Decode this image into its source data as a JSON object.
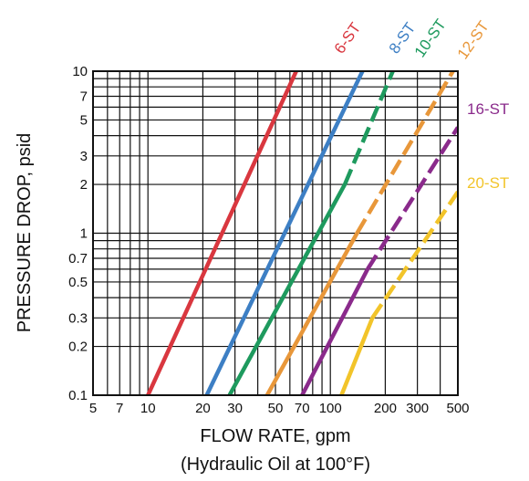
{
  "chart_data": {
    "type": "line",
    "xscale": "log",
    "yscale": "log",
    "xlim": [
      5,
      500
    ],
    "ylim": [
      0.1,
      10
    ],
    "grid": true,
    "xlabel": "FLOW RATE, gpm",
    "xlabel_sub": "(Hydraulic Oil at 100°F)",
    "ylabel": "PRESSURE DROP, psid",
    "x_ticks": [
      {
        "value": 5,
        "label": "5"
      },
      {
        "value": 7,
        "label": "7"
      },
      {
        "value": 10,
        "label": "10"
      },
      {
        "value": 20,
        "label": "20"
      },
      {
        "value": 30,
        "label": "30"
      },
      {
        "value": 50,
        "label": "50"
      },
      {
        "value": 70,
        "label": "70"
      },
      {
        "value": 100,
        "label": "100"
      },
      {
        "value": 200,
        "label": "200"
      },
      {
        "value": 300,
        "label": "300"
      },
      {
        "value": 500,
        "label": "500"
      }
    ],
    "y_ticks": [
      {
        "value": 0.1,
        "label": "0.1"
      },
      {
        "value": 0.2,
        "label": "0.2"
      },
      {
        "value": 0.3,
        "label": "0.3"
      },
      {
        "value": 0.5,
        "label": "0.5"
      },
      {
        "value": 0.7,
        "label": "0.7"
      },
      {
        "value": 1,
        "label": "1"
      },
      {
        "value": 2,
        "label": "2"
      },
      {
        "value": 3,
        "label": "3"
      },
      {
        "value": 5,
        "label": "5"
      },
      {
        "value": 7,
        "label": "7"
      },
      {
        "value": 10,
        "label": "10"
      }
    ],
    "series": [
      {
        "name": "6-ST",
        "color": "#d9373f",
        "solid": [
          [
            10,
            0.1
          ],
          [
            65,
            10
          ]
        ],
        "dashed": null
      },
      {
        "name": "8-ST",
        "color": "#3d7fc4",
        "solid": [
          [
            21,
            0.1
          ],
          [
            150,
            10
          ]
        ],
        "dashed": null
      },
      {
        "name": "10-ST",
        "color": "#1e9a5e",
        "solid": [
          [
            28,
            0.1
          ],
          [
            120,
            2
          ]
        ],
        "dashed": [
          [
            120,
            2
          ],
          [
            220,
            10
          ]
        ]
      },
      {
        "name": "12-ST",
        "color": "#e8973a",
        "solid": [
          [
            45,
            0.1
          ],
          [
            140,
            1
          ]
        ],
        "dashed": [
          [
            140,
            1
          ],
          [
            470,
            10
          ]
        ]
      },
      {
        "name": "16-ST",
        "color": "#8a2a8b",
        "solid": [
          [
            70,
            0.1
          ],
          [
            160,
            0.6
          ]
        ],
        "dashed": [
          [
            160,
            0.6
          ],
          [
            500,
            4.5
          ]
        ]
      },
      {
        "name": "20-ST",
        "color": "#f2c42a",
        "solid": [
          [
            115,
            0.1
          ],
          [
            170,
            0.3
          ]
        ],
        "dashed": [
          [
            170,
            0.3
          ],
          [
            500,
            1.8
          ]
        ]
      }
    ]
  }
}
